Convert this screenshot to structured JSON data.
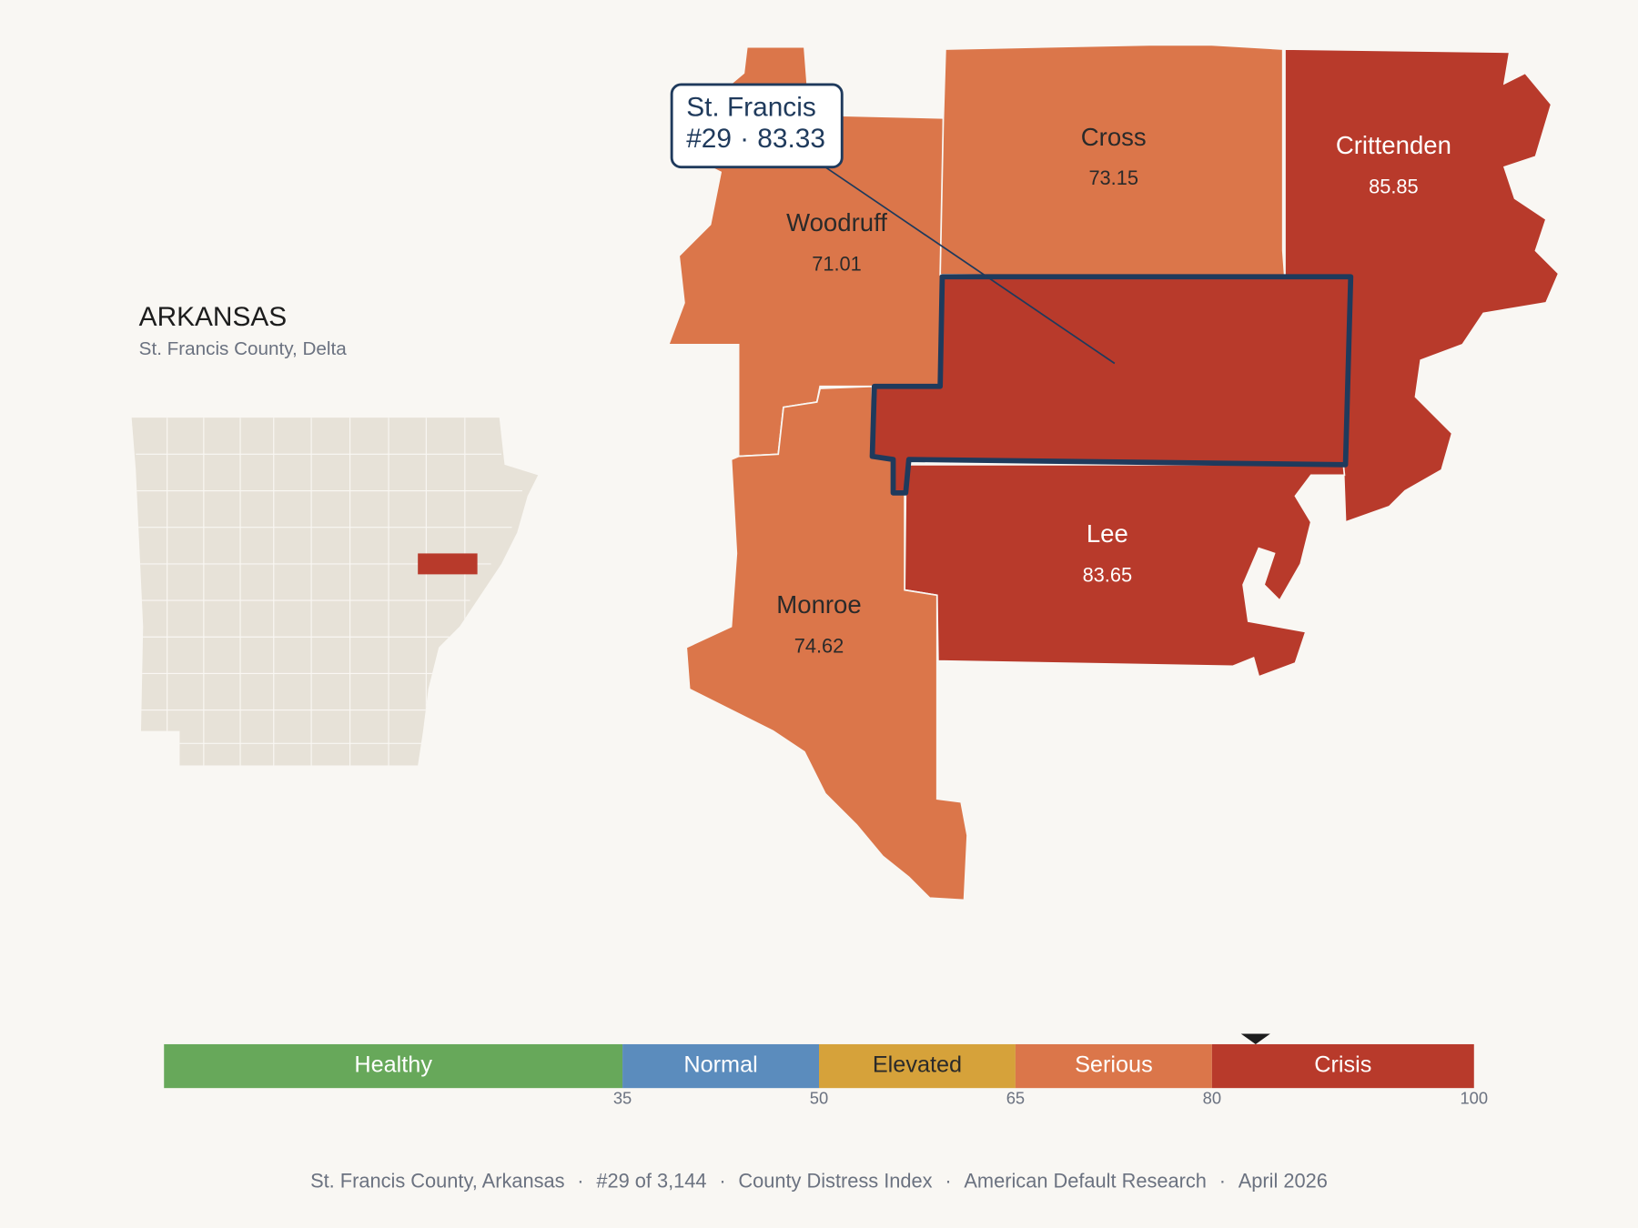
{
  "header": {
    "title": "ARKANSAS",
    "subtitle": "St. Francis County, Delta"
  },
  "map": {
    "highlight": {
      "name": "St. Francis",
      "rank": "#29",
      "value": 83.33
    },
    "counties": [
      {
        "name": "Woodruff",
        "value": 71.01
      },
      {
        "name": "Cross",
        "value": 73.15
      },
      {
        "name": "Crittenden",
        "value": 85.85
      },
      {
        "name": "Lee",
        "value": 83.65
      },
      {
        "name": "Monroe",
        "value": 74.62
      }
    ]
  },
  "scale": {
    "range": [
      0,
      100
    ],
    "ticks": [
      35,
      50,
      65,
      80,
      100
    ],
    "bands": [
      {
        "label": "Healthy",
        "color": "#67a85a"
      },
      {
        "label": "Normal",
        "color": "#5b8cbd"
      },
      {
        "label": "Elevated",
        "color": "#d6a23a"
      },
      {
        "label": "Serious",
        "color": "#db764a"
      },
      {
        "label": "Crisis",
        "color": "#b83a2b"
      }
    ]
  },
  "footer": {
    "separator": "·",
    "items": [
      "St. Francis County, Arkansas",
      "#29 of 3,144",
      "County Distress Index",
      "American Default Research",
      "April 2026"
    ]
  }
}
